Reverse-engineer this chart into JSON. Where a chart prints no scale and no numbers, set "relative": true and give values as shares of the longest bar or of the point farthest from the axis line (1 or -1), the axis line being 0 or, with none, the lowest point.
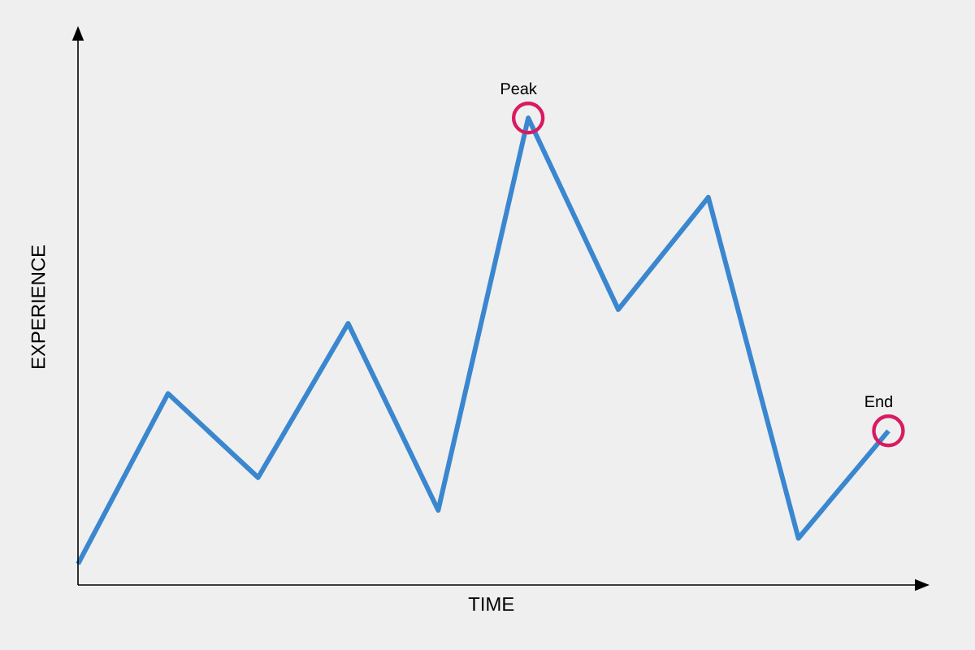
{
  "chart_data": {
    "type": "line",
    "relative": true,
    "xlabel": "TIME",
    "ylabel": "EXPERIENCE",
    "categories": [
      null,
      null,
      null,
      null,
      null,
      null,
      null,
      null,
      null,
      null
    ],
    "series": [
      {
        "color": "#3a87d0",
        "values": [
          0.045,
          0.41,
          0.23,
          0.56,
          0.16,
          1,
          0.59,
          0.83,
          0.1,
          0.33
        ]
      }
    ],
    "marker": "none",
    "annotations": [
      {
        "text": "Peak",
        "y": 1
      },
      {
        "text": "End",
        "y": 0.33
      }
    ]
  }
}
